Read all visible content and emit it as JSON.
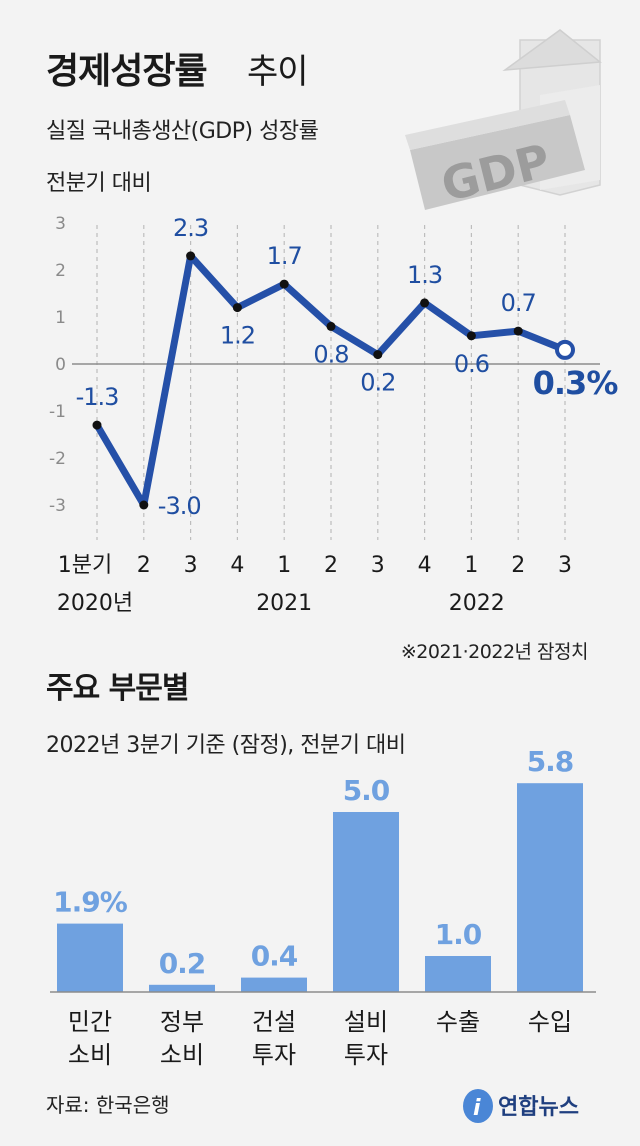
{
  "header": {
    "title_bold": "경제성장률",
    "title_light": "추이",
    "subtitle": "실질 국내총생산(GDP) 성장률",
    "unit_note": "전분기 대비",
    "graphic_text": "GDP"
  },
  "line_note": "※2021·2022년 잠정치",
  "bar_section": {
    "title": "주요 부문별",
    "subtitle": "2022년 3분기 기준 (잠정), 전분기 대비"
  },
  "footer": {
    "source": "자료: 한국은행",
    "logo_text": "연합뉴스"
  },
  "chart_data": [
    {
      "type": "line",
      "title": "경제성장률 추이",
      "subtitle": "실질 국내총생산(GDP) 성장률",
      "ylabel": "전분기 대비",
      "ylim": [
        -3,
        3
      ],
      "yticks": [
        "3",
        "2",
        "1",
        "0",
        "-1",
        "-2",
        "-3"
      ],
      "x": [
        "1분기",
        "2",
        "3",
        "4",
        "1",
        "2",
        "3",
        "4",
        "1",
        "2",
        "3"
      ],
      "years": [
        "2020년",
        "2021",
        "2022"
      ],
      "series": [
        {
          "values": [
            -1.3,
            -3.0,
            2.3,
            1.2,
            1.7,
            0.8,
            0.2,
            1.3,
            0.6,
            0.7,
            0.3
          ],
          "labels": [
            "-1.3",
            "-3.0",
            "2.3",
            "1.2",
            "1.7",
            "0.8",
            "0.2",
            "1.3",
            "0.6",
            "0.7",
            "0.3%"
          ]
        }
      ],
      "grid": "vertical dashed",
      "color": "#2550a8"
    },
    {
      "type": "bar",
      "title": "주요 부문별",
      "subtitle": "2022년 3분기 기준 (잠정), 전분기 대비",
      "categories": [
        [
          "민간",
          "소비"
        ],
        [
          "정부",
          "소비"
        ],
        [
          "건설",
          "투자"
        ],
        [
          "설비",
          "투자"
        ],
        [
          "수출"
        ],
        [
          "수입"
        ]
      ],
      "values": [
        1.9,
        0.2,
        0.4,
        5.0,
        1.0,
        5.8
      ],
      "labels": [
        "1.9%",
        "0.2",
        "0.4",
        "5.0",
        "1.0",
        "5.8"
      ],
      "color": "#6fa1e0"
    }
  ]
}
